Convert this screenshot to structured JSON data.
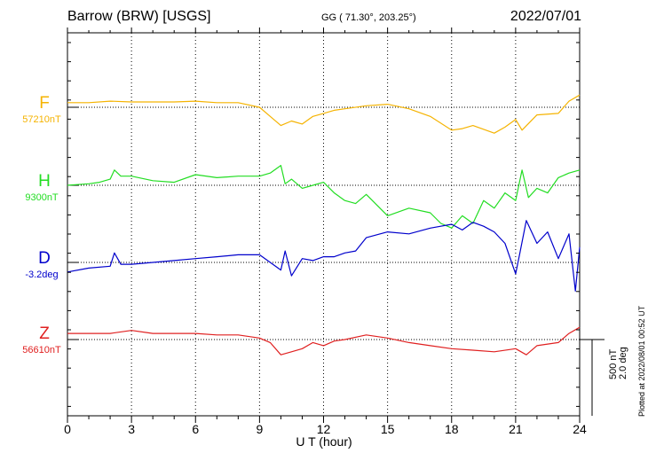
{
  "header": {
    "station": "Barrow (BRW)  [USGS]",
    "coords": "GG ( 71.30°, 203.25°)",
    "date": "2022/07/01"
  },
  "plotted_note": "Plotted at 2022/08/01 00:52 UT",
  "chart_data": {
    "type": "line",
    "xlabel": "U T (hour)",
    "x_ticks": [
      0,
      3,
      6,
      9,
      12,
      15,
      18,
      21,
      24
    ],
    "xlim": [
      0,
      24
    ],
    "grid": true,
    "scale_bar": {
      "label": "500 nT\n2.0 deg"
    },
    "series": [
      {
        "name": "F",
        "baseline_label": "57210nT",
        "color": "#f5b301",
        "x": [
          0,
          1,
          2,
          3,
          4,
          5,
          6,
          7,
          8,
          9,
          9.5,
          10,
          10.5,
          11,
          11.5,
          12,
          12.5,
          13,
          14,
          15,
          16,
          17,
          18,
          18.5,
          19,
          20,
          20.5,
          21,
          21.3,
          22,
          23,
          23.5,
          24
        ],
        "y": [
          30,
          30,
          40,
          35,
          35,
          35,
          40,
          30,
          30,
          0,
          -60,
          -120,
          -90,
          -110,
          -60,
          -40,
          -20,
          -10,
          10,
          20,
          -10,
          -60,
          -150,
          -140,
          -120,
          -170,
          -130,
          -80,
          -150,
          -50,
          -40,
          40,
          80
        ]
      },
      {
        "name": "H",
        "baseline_label": "9300nT",
        "color": "#22dd22",
        "x": [
          0,
          1,
          1.5,
          2,
          2.2,
          2.5,
          3,
          4,
          5,
          6,
          7,
          8,
          9,
          9.5,
          10,
          10.2,
          10.5,
          11,
          11.5,
          12,
          12.5,
          13,
          13.5,
          14,
          15,
          16,
          17,
          17.5,
          18,
          18.5,
          19,
          19.5,
          20,
          20.5,
          21,
          21.3,
          21.6,
          22,
          22.5,
          23,
          23.5,
          24
        ],
        "y": [
          0,
          10,
          20,
          40,
          100,
          60,
          60,
          30,
          20,
          70,
          50,
          60,
          60,
          80,
          130,
          10,
          40,
          -20,
          0,
          20,
          -50,
          -100,
          -120,
          -60,
          -200,
          -150,
          -180,
          -250,
          -280,
          -200,
          -250,
          -100,
          -150,
          -50,
          -100,
          100,
          -80,
          -20,
          -50,
          50,
          80,
          100
        ]
      },
      {
        "name": "D",
        "baseline_label": "-3.2deg",
        "color": "#0000cc",
        "x": [
          0,
          1,
          2,
          2.2,
          2.5,
          3,
          4,
          5,
          6,
          7,
          8,
          9,
          9.5,
          10,
          10.2,
          10.5,
          11,
          11.5,
          12,
          12.5,
          13,
          13.5,
          14,
          15,
          16,
          17,
          18,
          18.5,
          19,
          19.5,
          20,
          20.5,
          21,
          21.2,
          21.5,
          22,
          22.5,
          23,
          23.5,
          23.8,
          24
        ],
        "y": [
          -0.5,
          -0.3,
          -0.2,
          0.5,
          -0.1,
          -0.1,
          0,
          0.1,
          0.2,
          0.3,
          0.4,
          0.4,
          0,
          -0.4,
          0.6,
          -0.7,
          0.2,
          0.1,
          0.3,
          0.3,
          0.5,
          0.6,
          1.3,
          1.6,
          1.5,
          1.8,
          2.0,
          1.7,
          2.1,
          1.9,
          1.6,
          1.0,
          -0.6,
          0.5,
          2.2,
          1.0,
          1.6,
          0.2,
          1.5,
          -1.5,
          0.8
        ]
      },
      {
        "name": "Z",
        "baseline_label": "56610nT",
        "color": "#e02020",
        "x": [
          0,
          1,
          2,
          3,
          4,
          5,
          6,
          7,
          8,
          9,
          9.5,
          10,
          10.5,
          11,
          11.5,
          12,
          12.5,
          13,
          14,
          15,
          16,
          17,
          18,
          19,
          20,
          21,
          21.5,
          22,
          23,
          23.5,
          24
        ],
        "y": [
          40,
          40,
          40,
          60,
          40,
          40,
          40,
          30,
          30,
          10,
          -20,
          -100,
          -80,
          -60,
          -20,
          -40,
          -10,
          0,
          30,
          10,
          -20,
          -40,
          -60,
          -70,
          -80,
          -60,
          -100,
          -40,
          -20,
          40,
          80
        ]
      }
    ]
  }
}
